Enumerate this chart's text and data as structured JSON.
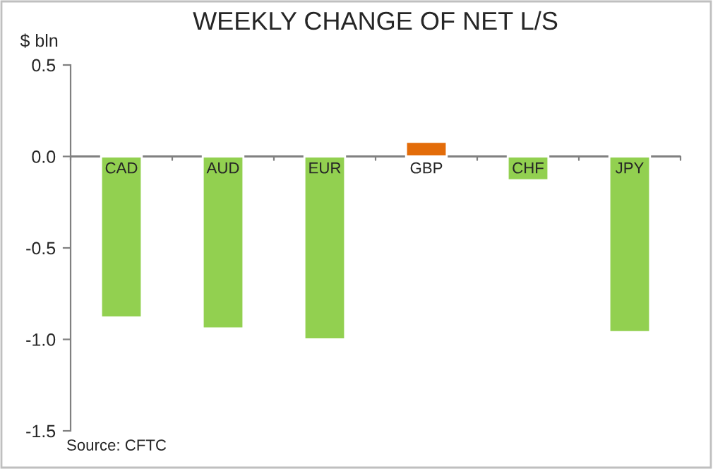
{
  "chart_data": {
    "type": "bar",
    "title": "WEEKLY CHANGE OF NET L/S",
    "ylabel": "$ bln",
    "categories": [
      "CAD",
      "AUD",
      "EUR",
      "GBP",
      "CHF",
      "JPY"
    ],
    "values": [
      -0.88,
      -0.94,
      -1.0,
      0.08,
      -0.13,
      -0.96
    ],
    "colors": [
      "#92d050",
      "#92d050",
      "#92d050",
      "#e36c09",
      "#92d050",
      "#92d050"
    ],
    "ylim": [
      -1.5,
      0.5
    ],
    "yticks": [
      {
        "value": -1.5,
        "label": "-1.5"
      },
      {
        "value": -1.0,
        "label": "-1.0"
      },
      {
        "value": -0.5,
        "label": "-0.5"
      },
      {
        "value": 0.0,
        "label": "0.0"
      },
      {
        "value": 0.5,
        "label": "0.5"
      }
    ],
    "grid": false,
    "legend": false,
    "annotations": [
      "Source: CFTC"
    ]
  }
}
